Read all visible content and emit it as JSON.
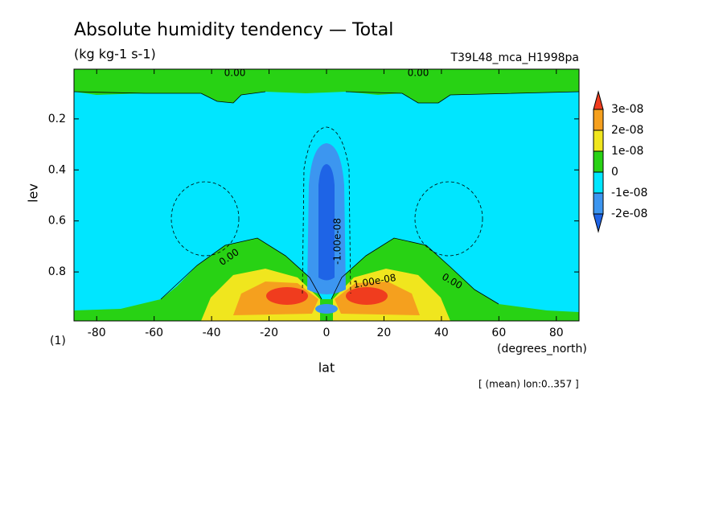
{
  "chart_data": {
    "type": "contour",
    "title": "Absolute humidity tendency — Total",
    "subtitle": "(kg kg-1 s-1)",
    "run_label": "T39L48_mca_H1998pa",
    "x_label": "lat",
    "x_unit": "(degrees_north)",
    "y_label": "lev",
    "y_unit": "(1)",
    "footnote": "[ (mean) lon:0..357 ]",
    "xlim": [
      -87.9,
      87.9
    ],
    "xticks": [
      -80,
      -60,
      -40,
      -20,
      0,
      20,
      40,
      60,
      80
    ],
    "ylim": [
      0.992,
      0.005
    ],
    "yticks": [
      0.2,
      0.4,
      0.6,
      0.8
    ],
    "contour_labels": [
      "0.00",
      "0.00",
      "0.00",
      "0.00",
      "-1.00e-08",
      "1.00e-08"
    ],
    "colorbar": {
      "levels": [
        {
          "value": -2e-08,
          "label": "-2e-08"
        },
        {
          "value": -1e-08,
          "label": "-1e-08"
        },
        0,
        {
          "value": 1e-08,
          "label": "1e-08"
        },
        {
          "value": 2e-08,
          "label": "2e-08"
        },
        {
          "value": 3e-08,
          "label": "3e-08"
        }
      ],
      "colors": [
        "#1e64e6",
        "#3c96f0",
        "#00e6ff",
        "#28d214",
        "#f0e61e",
        "#f5a01e",
        "#f03c1e"
      ]
    }
  }
}
